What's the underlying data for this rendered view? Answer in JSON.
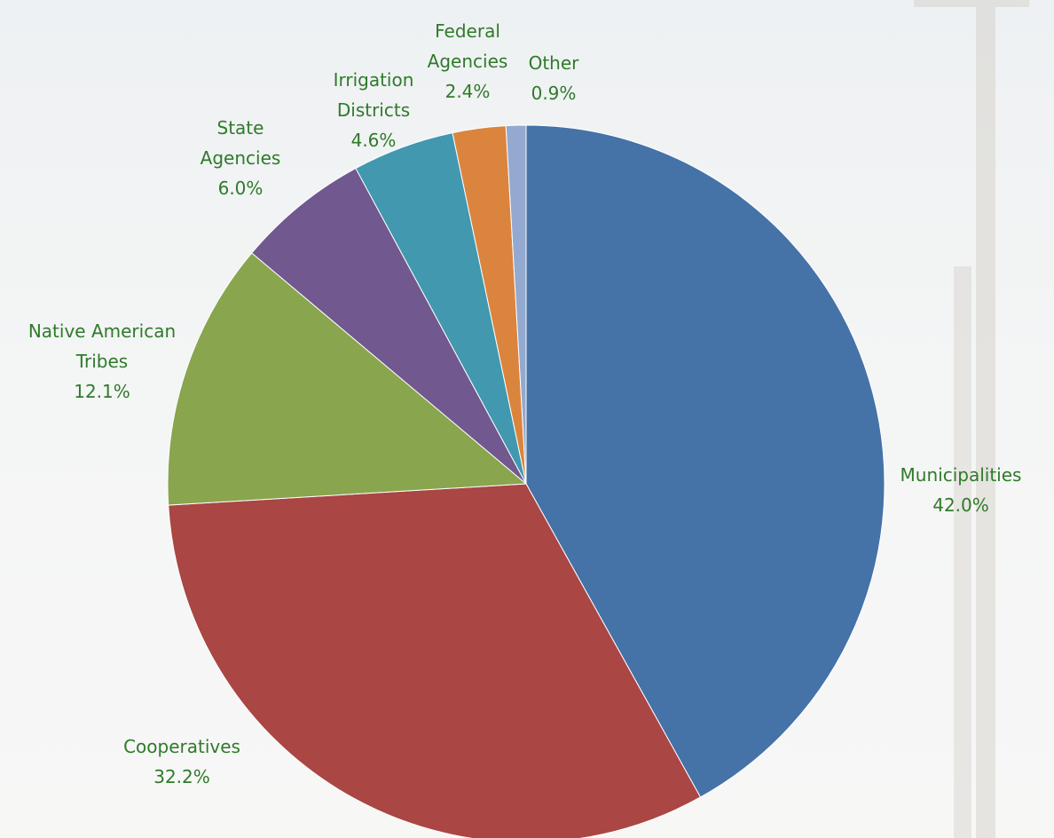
{
  "chart_data": {
    "type": "pie",
    "categories": [
      "Municipalities",
      "Cooperatives",
      "Native American Tribes",
      "State Agencies",
      "Irrigation Districts",
      "Federal Agencies",
      "Other"
    ],
    "values": [
      42.0,
      32.2,
      12.1,
      6.0,
      4.6,
      2.4,
      0.9
    ],
    "value_labels": [
      "42.0%",
      "32.2%",
      "12.1%",
      "6.0%",
      "4.6%",
      "2.4%",
      "0.9%"
    ],
    "colors": [
      "#4572a7",
      "#aa4643",
      "#89a54e",
      "#71588f",
      "#4198af",
      "#db843d",
      "#93a9cf"
    ]
  }
}
